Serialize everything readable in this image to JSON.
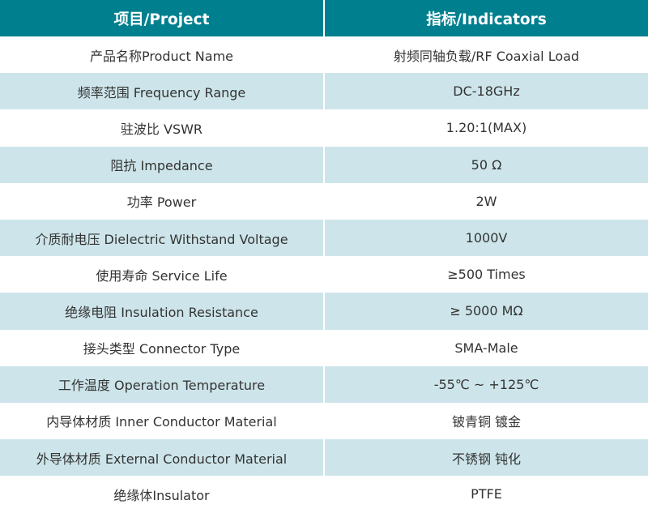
{
  "header": {
    "col1": "项目/Project",
    "col2": "指标/Indicators"
  },
  "colors": {
    "header": "#00808f",
    "alt_row": "#cde5ea"
  },
  "rows": [
    {
      "item": "产品名称Product Name",
      "value": "射频同轴负载/RF Coaxial Load"
    },
    {
      "item": "频率范围 Frequency Range",
      "value": "DC-18GHz"
    },
    {
      "item": "驻波比 VSWR",
      "value": "1.20:1(MAX)"
    },
    {
      "item": "阻抗 Impedance",
      "value": "50 Ω"
    },
    {
      "item": "功率 Power",
      "value": "2W"
    },
    {
      "item": "介质耐电压 Dielectric Withstand Voltage",
      "value": "1000V"
    },
    {
      "item": "使用寿命 Service Life",
      "value": "≥500 Times"
    },
    {
      "item": "绝缘电阻 Insulation Resistance",
      "value": "≥ 5000 MΩ"
    },
    {
      "item": "接头类型 Connector Type",
      "value": "SMA-Male"
    },
    {
      "item": "工作温度 Operation Temperature",
      "value": "-55℃ ~ +125℃"
    },
    {
      "item": "内导体材质 Inner Conductor Material",
      "value": "铍青铜 镀金"
    },
    {
      "item": "外导体材质 External Conductor Material",
      "value": "不锈钢 钝化"
    },
    {
      "item": "绝缘体Insulator",
      "value": "PTFE"
    }
  ]
}
